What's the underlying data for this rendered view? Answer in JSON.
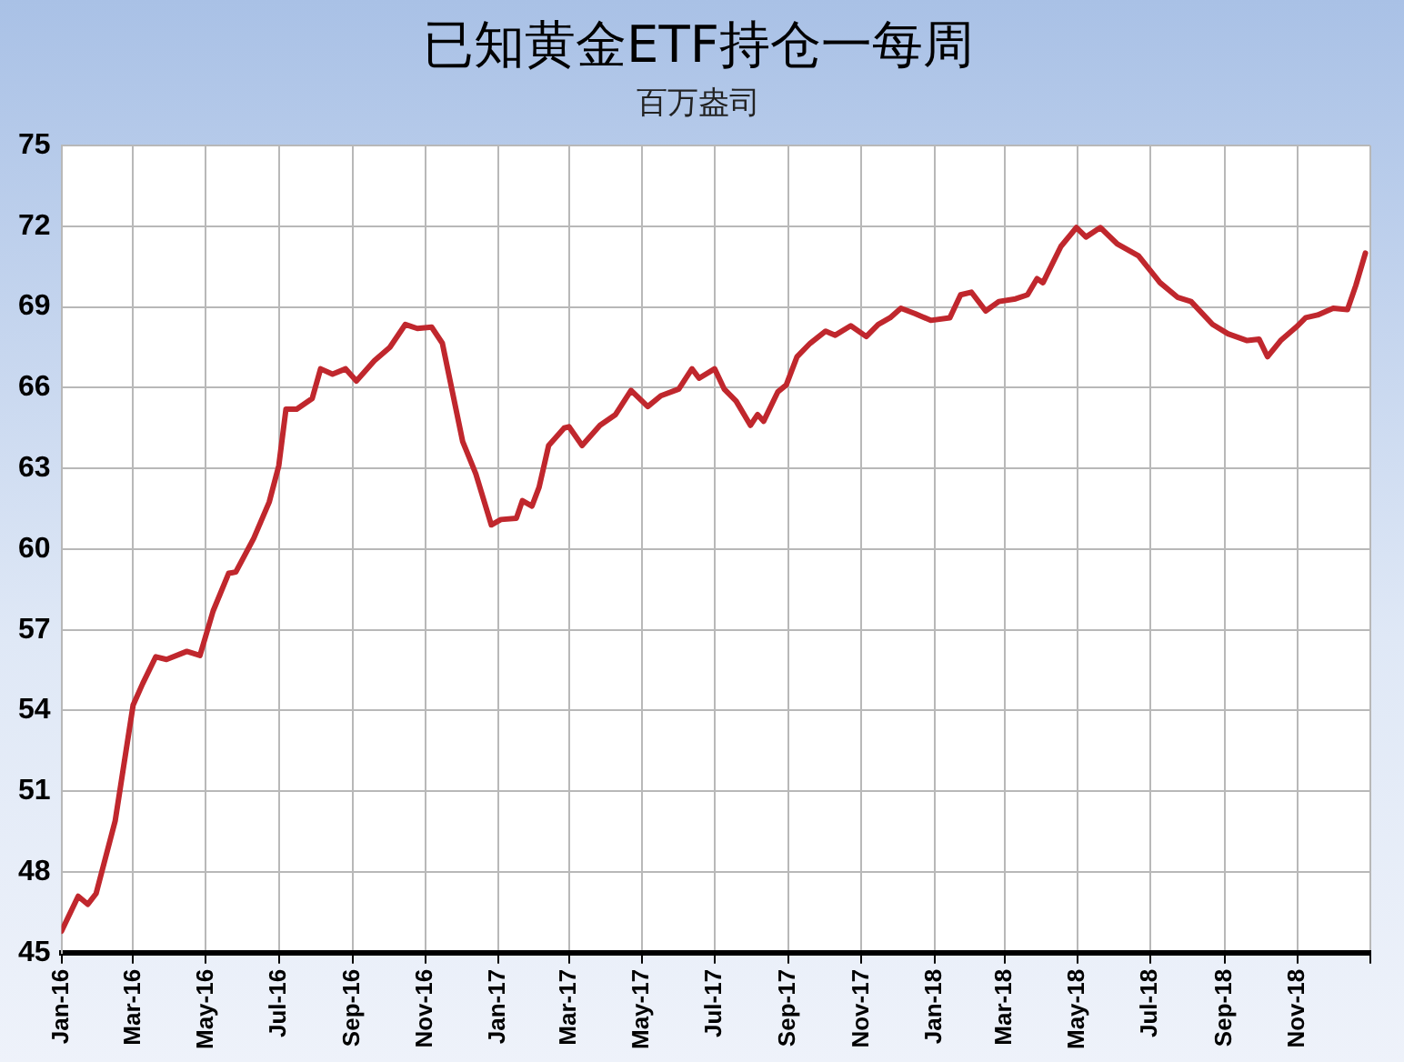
{
  "chart_data": {
    "type": "line",
    "title": "已知黄金ETF持仓一每周",
    "subtitle": "百万盎司",
    "x": [
      "2016-01-01",
      "2016-01-15",
      "2016-01-23",
      "2016-01-30",
      "2016-02-15",
      "2016-03-01",
      "2016-03-09",
      "2016-03-20",
      "2016-03-29",
      "2016-04-15",
      "2016-04-26",
      "2016-05-07",
      "2016-05-20",
      "2016-05-26",
      "2016-06-10",
      "2016-06-23",
      "2016-07-01",
      "2016-07-07",
      "2016-07-16",
      "2016-07-29",
      "2016-08-05",
      "2016-08-15",
      "2016-08-26",
      "2016-09-04",
      "2016-09-19",
      "2016-10-02",
      "2016-10-15",
      "2016-10-25",
      "2016-11-06",
      "2016-11-15",
      "2016-12-02",
      "2016-12-13",
      "2016-12-26",
      "2017-01-03",
      "2017-01-16",
      "2017-01-21",
      "2017-01-29",
      "2017-02-04",
      "2017-02-12",
      "2017-02-25",
      "2017-03-01",
      "2017-03-12",
      "2017-03-27",
      "2017-04-09",
      "2017-04-22",
      "2017-05-06",
      "2017-05-17",
      "2017-06-01",
      "2017-06-12",
      "2017-06-18",
      "2017-07-01",
      "2017-07-09",
      "2017-07-19",
      "2017-07-31",
      "2017-08-06",
      "2017-08-11",
      "2017-08-23",
      "2017-08-30",
      "2017-09-08",
      "2017-09-19",
      "2017-10-02",
      "2017-10-10",
      "2017-10-23",
      "2017-11-05",
      "2017-11-15",
      "2017-11-25",
      "2017-12-04",
      "2017-12-16",
      "2017-12-29",
      "2018-01-14",
      "2018-01-23",
      "2018-02-01",
      "2018-02-13",
      "2018-02-24",
      "2018-03-10",
      "2018-03-20",
      "2018-03-28",
      "2018-04-02",
      "2018-04-17",
      "2018-04-30",
      "2018-05-08",
      "2018-05-20",
      "2018-06-03",
      "2018-06-21",
      "2018-07-09",
      "2018-07-24",
      "2018-08-04",
      "2018-08-22",
      "2018-09-04",
      "2018-09-20",
      "2018-09-30",
      "2018-10-07",
      "2018-10-18",
      "2018-10-31",
      "2018-11-08",
      "2018-11-18",
      "2018-12-01",
      "2018-12-13",
      "2018-12-20",
      "2018-12-28"
    ],
    "series": [
      {
        "color": "#c0272d",
        "values": [
          45.8,
          47.1,
          46.8,
          47.2,
          49.9,
          54.2,
          55.0,
          56.0,
          55.9,
          56.2,
          56.05,
          57.7,
          59.1,
          59.15,
          60.4,
          61.75,
          63.1,
          65.2,
          65.2,
          65.6,
          66.7,
          66.5,
          66.7,
          66.25,
          67.0,
          67.5,
          68.35,
          68.2,
          68.25,
          67.65,
          64.0,
          62.8,
          60.9,
          61.1,
          61.15,
          61.8,
          61.6,
          62.3,
          63.85,
          64.5,
          64.55,
          63.85,
          64.6,
          65.0,
          65.9,
          65.3,
          65.7,
          65.95,
          66.7,
          66.35,
          66.7,
          65.95,
          65.5,
          64.6,
          65.0,
          64.75,
          65.85,
          66.1,
          67.15,
          67.65,
          68.1,
          67.95,
          68.3,
          67.9,
          68.35,
          68.6,
          68.95,
          68.75,
          68.5,
          68.6,
          69.45,
          69.55,
          68.85,
          69.2,
          69.3,
          69.45,
          70.05,
          69.9,
          71.25,
          71.95,
          71.6,
          71.95,
          71.35,
          70.9,
          69.9,
          69.35,
          69.2,
          68.35,
          68.0,
          67.75,
          67.8,
          67.15,
          67.75,
          68.25,
          68.6,
          68.7,
          68.95,
          68.9,
          69.8,
          71.0
        ]
      }
    ],
    "xlim": [
      "2016-01-01",
      "2019-01-01"
    ],
    "xticks": [
      {
        "value": "2016-01",
        "label": "Jan-16"
      },
      {
        "value": "2016-03",
        "label": "Mar-16"
      },
      {
        "value": "2016-05",
        "label": "May-16"
      },
      {
        "value": "2016-07",
        "label": "Jul-16"
      },
      {
        "value": "2016-09",
        "label": "Sep-16"
      },
      {
        "value": "2016-11",
        "label": "Nov-16"
      },
      {
        "value": "2017-01",
        "label": "Jan-17"
      },
      {
        "value": "2017-03",
        "label": "Mar-17"
      },
      {
        "value": "2017-05",
        "label": "May-17"
      },
      {
        "value": "2017-07",
        "label": "Jul-17"
      },
      {
        "value": "2017-09",
        "label": "Sep-17"
      },
      {
        "value": "2017-11",
        "label": "Nov-17"
      },
      {
        "value": "2018-01",
        "label": "Jan-18"
      },
      {
        "value": "2018-03",
        "label": "Mar-18"
      },
      {
        "value": "2018-05",
        "label": "May-18"
      },
      {
        "value": "2018-07",
        "label": "Jul-18"
      },
      {
        "value": "2018-09",
        "label": "Sep-18"
      },
      {
        "value": "2018-11",
        "label": "Nov-18"
      },
      {
        "value": "2019-01",
        "label": null
      }
    ],
    "ylim": [
      45,
      75
    ],
    "yticks": [
      45,
      48,
      51,
      54,
      57,
      60,
      63,
      66,
      69,
      72,
      75
    ],
    "grid": true,
    "legend": false,
    "marker": "none",
    "line_style": "solid"
  }
}
